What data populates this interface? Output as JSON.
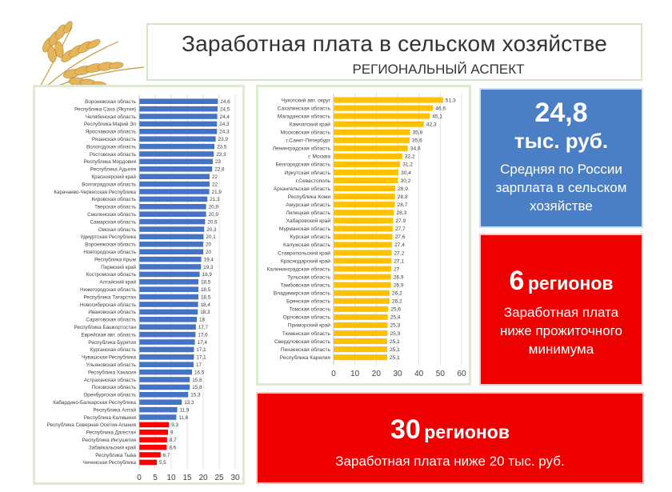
{
  "title": {
    "main": "Заработная плата в сельском хозяйстве",
    "sub": "РЕГИОНАЛЬНЫЙ АСПЕКТ"
  },
  "colors": {
    "blue_bar": "#4472c4",
    "red_bar": "#ff0000",
    "gold_bar": "#ffc000",
    "card_blue": "#4a7fc6",
    "card_red": "#ee0000"
  },
  "cards": {
    "average": {
      "value": "24,8",
      "unit": "тыс. руб.",
      "line1": "Средняя по России",
      "line2": "зарплата в сельском",
      "line3": "хозяйстве"
    },
    "six": {
      "number": "6",
      "word": "регионов",
      "line1": "Заработная плата",
      "line2": "ниже прожиточного",
      "line3": "минимума"
    },
    "thirty": {
      "number": "30",
      "word": "регионов",
      "line1": "Заработная плата ниже 20 тыс. руб."
    }
  },
  "chart_data": [
    {
      "type": "bar",
      "orientation": "horizontal",
      "categories": [
        "Воронежская область",
        "Республика Саха (Якутия)",
        "Челябинская область",
        "Республика Марий Эл",
        "Ярославская область",
        "Рязанская область",
        "Вологодская область",
        "Ростовская область",
        "Республика Мордовия",
        "Республика Адыгея",
        "Красноярский край",
        "Волгоградская область",
        "Карачаево-Черкесская Республика",
        "Кировская область",
        "Тверская область",
        "Смоленская область",
        "Самарская область",
        "Омская область",
        "Удмуртская Республика",
        "Воронежская область",
        "Новгородская область",
        "Республика Крым",
        "Пермский край",
        "Костромская область",
        "Алтайский край",
        "Нижегородская область",
        "Республика Татарстан",
        "Новосибирская область",
        "Ивановская область",
        "Саратовская область",
        "Республика Башкортостан",
        "Еврейская авт. область",
        "Республика Бурятия",
        "Курганская область",
        "Чувашская Республика",
        "Ульяновская область",
        "Республика Хакасия",
        "Астраханская область",
        "Псковская область",
        "Оренбургская область",
        "Кабардино-Балкарская Республика",
        "Республика Алтай",
        "Республика Калмыкия",
        "Республика Северная Осетия-Алания",
        "Республика Дагестан",
        "Республика Ингушетия",
        "Забайкальский край",
        "Республика Тыва",
        "Чеченская Республика"
      ],
      "values": [
        24.6,
        24.5,
        24.4,
        24.3,
        24.3,
        23.9,
        23.5,
        23.3,
        23,
        22.8,
        22,
        22,
        21.9,
        21.3,
        20.9,
        20.9,
        20.6,
        20.3,
        20.1,
        20,
        20,
        19.4,
        19.3,
        18.9,
        18.5,
        18.5,
        18.5,
        18.4,
        18.3,
        18,
        17.7,
        17.6,
        17.4,
        17.1,
        17.1,
        17,
        16.5,
        15.8,
        15.8,
        15.3,
        13.3,
        11.9,
        11.6,
        9.3,
        9,
        8.7,
        8.6,
        6.7,
        5.5
      ],
      "value_labels": [
        "24,6",
        "24,5",
        "24,4",
        "24,3",
        "24,3",
        "23,9",
        "23,5",
        "23,3",
        "23",
        "22,8",
        "22",
        "22",
        "21,9",
        "21,3",
        "20,9",
        "20,9",
        "20,6",
        "20,3",
        "20,1",
        "20",
        "20",
        "19,4",
        "19,3",
        "18,9",
        "18,5",
        "18,5",
        "18,5",
        "18,4",
        "18,3",
        "18",
        "17,7",
        "17,6",
        "17,4",
        "17,1",
        "17,1",
        "17",
        "16,5",
        "15,8",
        "15,8",
        "15,3",
        "13,3",
        "11,9",
        "11,6",
        "9,3",
        "9",
        "8,7",
        "8,6",
        "6,7",
        "5,5"
      ],
      "highlight_from_index": 43,
      "xlim": [
        0,
        30
      ],
      "xticks": [
        0,
        5,
        10,
        15,
        20,
        25,
        30
      ]
    },
    {
      "type": "bar",
      "orientation": "horizontal",
      "categories": [
        "Чукотский авт. округ",
        "Сахалинская область",
        "Магаданская область",
        "Камчатский край",
        "Московская область",
        "г.Санкт-Петербург",
        "Ленинградская область",
        "г. Москва",
        "Белгородская область",
        "Иркутская область",
        "г.Севастополь",
        "Архангельская область",
        "Республика Коми",
        "Амурская область",
        "Липецкая область",
        "Хабаровский край",
        "Мурманская область",
        "Курская область",
        "Калужская область",
        "Ставропольский край",
        "Краснодарский край",
        "Калининградская область",
        "Тульская область",
        "Тамбовская область",
        "Владимирская область",
        "Брянская область",
        "Томская область",
        "Орловская область",
        "Приморский край",
        "Тюменская область",
        "Свердловская область",
        "Пензенская область",
        "Республика Карелия"
      ],
      "values": [
        51.3,
        46.6,
        45.1,
        42.3,
        35.8,
        35.6,
        34.8,
        32.2,
        31.2,
        30.4,
        30.2,
        28.9,
        28.8,
        28.7,
        28.3,
        27.9,
        27.7,
        27.6,
        27.4,
        27.2,
        27.1,
        27,
        26.9,
        26.9,
        26.2,
        26.2,
        25.6,
        25.4,
        25.3,
        25.3,
        25.1,
        25.1,
        25.1
      ],
      "value_labels": [
        "51,3",
        "46,6",
        "45,1",
        "42,3",
        "35,8",
        "35,6",
        "34,8",
        "32,2",
        "31,2",
        "30,4",
        "30,2",
        "28,9",
        "28,8",
        "28,7",
        "28,3",
        "27,9",
        "27,7",
        "27,6",
        "27,4",
        "27,2",
        "27,1",
        "27",
        "26,9",
        "26,9",
        "26,2",
        "26,2",
        "25,6",
        "25,4",
        "25,3",
        "25,3",
        "25,1",
        "25,1",
        "25,1"
      ],
      "xlim": [
        0,
        60
      ],
      "xticks": [
        0,
        10,
        20,
        30,
        40,
        50,
        60
      ]
    }
  ]
}
